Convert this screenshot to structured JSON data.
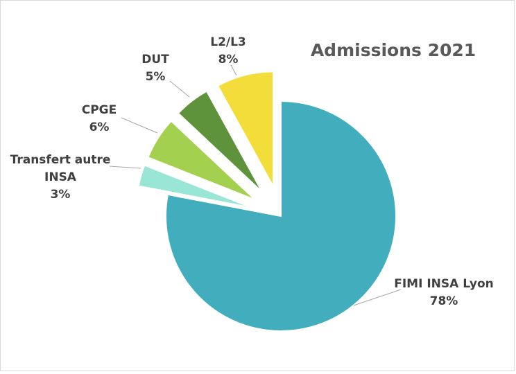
{
  "chart_data": {
    "type": "pie",
    "title": "Admissions 2021",
    "slices": [
      {
        "label_lines": [
          "FIMI INSA Lyon"
        ],
        "value": 78,
        "value_label": "78%",
        "color": "#41adbd"
      },
      {
        "label_lines": [
          "Transfert autre",
          "INSA"
        ],
        "value": 3,
        "value_label": "3%",
        "color": "#99e6d6"
      },
      {
        "label_lines": [
          "CPGE"
        ],
        "value": 6,
        "value_label": "6%",
        "color": "#a3d04e"
      },
      {
        "label_lines": [
          "DUT"
        ],
        "value": 5,
        "value_label": "5%",
        "color": "#5e923b"
      },
      {
        "label_lines": [
          "L2/L3"
        ],
        "value": 8,
        "value_label": "8%",
        "color": "#f3dd3a"
      }
    ],
    "legend": "none",
    "exploded": true
  }
}
